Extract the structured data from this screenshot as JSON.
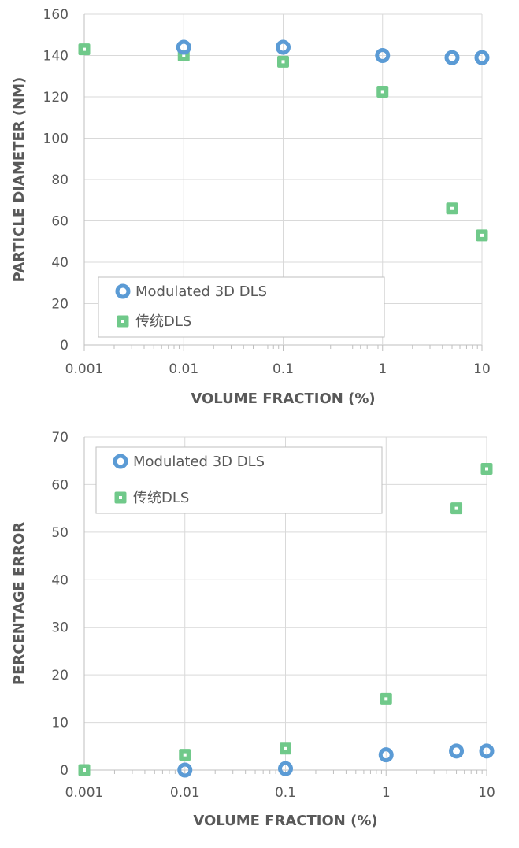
{
  "chart_data": [
    {
      "type": "scatter",
      "xlabel": "VOLUME FRACTION (%)",
      "ylabel": "PARTICLE DIAMETER (NM)",
      "xscale": "log",
      "xlim": [
        0.001,
        10
      ],
      "ylim": [
        0,
        160
      ],
      "xticks": [
        "0.001",
        "0.01",
        "0.1",
        "1",
        "10"
      ],
      "yticks": [
        "0",
        "20",
        "40",
        "60",
        "80",
        "100",
        "120",
        "140",
        "160"
      ],
      "grid": true,
      "legend_position": "lower-left",
      "series": [
        {
          "name": "Modulated 3D DLS",
          "marker": "circle",
          "color": "#5b9bd5",
          "x": [
            0.01,
            0.1,
            1,
            5,
            10
          ],
          "y": [
            144,
            144,
            140,
            139,
            139
          ]
        },
        {
          "name": "传统DLS",
          "marker": "square",
          "color": "#70c98a",
          "x": [
            0.001,
            0.01,
            0.1,
            1,
            5,
            10
          ],
          "y": [
            143,
            140,
            137,
            122.5,
            66,
            53
          ]
        }
      ]
    },
    {
      "type": "scatter",
      "xlabel": "VOLUME FRACTION (%)",
      "ylabel": "PERCENTAGE ERROR",
      "xscale": "log",
      "xlim": [
        0.001,
        10
      ],
      "ylim": [
        0,
        70
      ],
      "xticks": [
        "0.001",
        "0.01",
        "0.1",
        "1",
        "10"
      ],
      "yticks": [
        "0",
        "10",
        "20",
        "30",
        "40",
        "50",
        "60",
        "70"
      ],
      "grid": true,
      "legend_position": "top-left",
      "series": [
        {
          "name": "Modulated 3D DLS",
          "marker": "circle",
          "color": "#5b9bd5",
          "x": [
            0.01,
            0.1,
            1,
            5,
            10
          ],
          "y": [
            0,
            0.3,
            3.2,
            4,
            4
          ]
        },
        {
          "name": "传统DLS",
          "marker": "square",
          "color": "#70c98a",
          "x": [
            0.001,
            0.01,
            0.1,
            1,
            5,
            10
          ],
          "y": [
            0,
            3.2,
            4.5,
            15,
            55,
            63.3
          ]
        }
      ]
    }
  ]
}
